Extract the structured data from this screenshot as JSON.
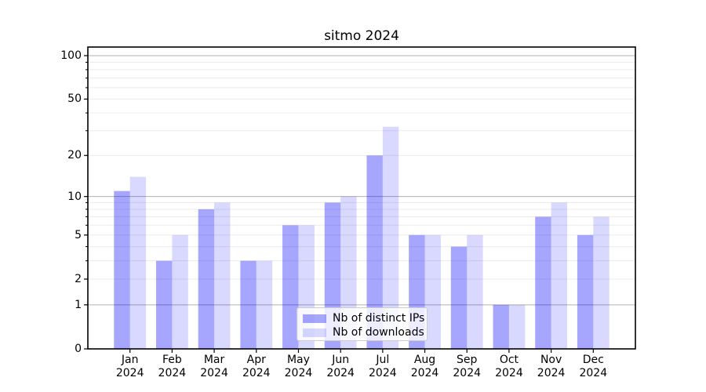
{
  "figure": {
    "title": "sitmo 2024"
  },
  "chart_data": {
    "type": "bar",
    "title": "sitmo 2024",
    "categories": [
      "Jan",
      "Feb",
      "Mar",
      "Apr",
      "May",
      "Jun",
      "Jul",
      "Aug",
      "Sep",
      "Oct",
      "Nov",
      "Dec"
    ],
    "category_year": "2024",
    "series": [
      {
        "name": "Nb of distinct IPs",
        "color": "#0000ff",
        "opacity": 0.35,
        "values": [
          11,
          3,
          8,
          3,
          6,
          9,
          20,
          5,
          4,
          1,
          7,
          5
        ]
      },
      {
        "name": "Nb of downloads",
        "color": "#0000ff",
        "opacity": 0.15,
        "values": [
          14,
          5,
          9,
          3,
          6,
          10,
          32,
          5,
          5,
          1,
          9,
          7
        ]
      }
    ],
    "xlabel": "",
    "ylabel": "",
    "yscale": "log1p",
    "yticks": [
      0,
      1,
      2,
      5,
      10,
      20,
      50,
      100
    ],
    "ylim": [
      0,
      115
    ],
    "grid": true,
    "legend_position": "lower center",
    "colors": {
      "major_grid": "#b0b0b0",
      "minor_grid": "#ebebeb",
      "axis": "#000000",
      "background": "#ffffff"
    }
  }
}
